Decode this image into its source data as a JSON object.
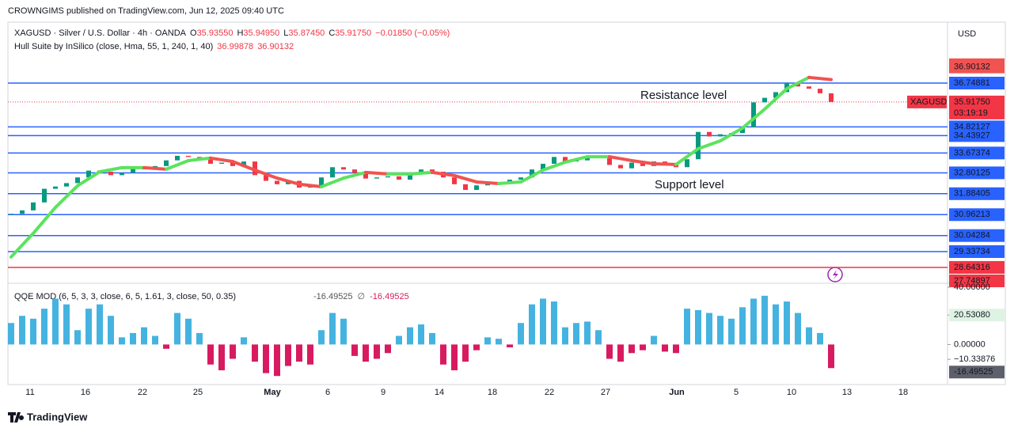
{
  "header": {
    "published": "CROWNGIMS published on TradingView.com, Jun 12, 2025 09:40 UTC"
  },
  "footer": {
    "brand": "TradingView"
  },
  "chart_data": [
    {
      "type": "candlestick",
      "title": "XAGUSD · Silver / U.S. Dollar · 4h · OANDA",
      "ohlc_legend": [
        {
          "key": "O",
          "value": "35.93550"
        },
        {
          "key": "H",
          "value": "35.94950"
        },
        {
          "key": "L",
          "value": "35.87450"
        },
        {
          "key": "C",
          "value": "35.91750"
        }
      ],
      "change": "−0.01850 (−0.05%)",
      "currency": "USD",
      "up_color": "#089981",
      "down_color": "#f23645",
      "close": [
        31.0,
        31.15,
        31.5,
        32.1,
        32.2,
        32.35,
        32.6,
        32.9,
        32.85,
        32.7,
        32.8,
        33.0,
        32.95,
        33.1,
        33.35,
        33.55,
        33.5,
        33.45,
        33.2,
        33.25,
        33.1,
        33.3,
        32.7,
        32.45,
        32.3,
        32.45,
        32.15,
        32.2,
        32.6,
        33.05,
        32.95,
        32.8,
        32.55,
        32.6,
        32.65,
        32.5,
        32.75,
        32.95,
        32.85,
        32.6,
        32.3,
        32.05,
        32.25,
        32.4,
        32.35,
        32.5,
        32.6,
        32.95,
        33.2,
        33.5,
        33.3,
        33.35,
        33.45,
        33.5,
        33.15,
        33.0,
        33.25,
        33.1,
        33.3,
        33.15,
        33.05,
        33.4,
        34.6,
        34.4,
        34.5,
        34.55,
        34.8,
        35.9,
        36.1,
        36.35,
        36.75,
        36.6,
        36.5,
        36.3,
        35.9175
      ],
      "hull": {
        "name": "Hull Suite by InSilico (close, Hma, 55, 1, 240, 1, 40)",
        "up_color": "#5be35d",
        "down_color": "#f05350",
        "values": [
          29.1,
          30.14,
          31.28,
          32.23,
          32.85,
          33.03,
          33.03,
          32.96,
          33.34,
          33.45,
          33.3,
          32.92,
          32.57,
          32.3,
          32.19,
          32.57,
          32.82,
          32.75,
          32.75,
          32.82,
          32.68,
          32.4,
          32.33,
          32.4,
          32.92,
          33.27,
          33.51,
          33.51,
          33.34,
          33.2,
          33.17,
          33.86,
          34.21,
          34.77,
          35.6,
          36.5,
          36.99878,
          36.90132
        ]
      },
      "last_price": {
        "symbol": "XAGUSD",
        "label": "35.91750",
        "value": 35.9175,
        "countdown": "03:19:19",
        "color": "#f23645"
      },
      "levels": [
        {
          "value": 36.74881,
          "color": "#2962ff"
        },
        {
          "value": 34.82127,
          "color": "#2962ff"
        },
        {
          "value": 34.43927,
          "color": "#2962ff"
        },
        {
          "value": 33.67374,
          "color": "#2962ff"
        },
        {
          "value": 32.80125,
          "color": "#2962ff"
        },
        {
          "value": 31.88405,
          "color": "#2962ff"
        },
        {
          "value": 30.96213,
          "color": "#2962ff"
        },
        {
          "value": 30.04284,
          "color": "#2962ff"
        },
        {
          "value": 29.33734,
          "color": "#2962ff"
        },
        {
          "value": 28.64316,
          "color": "#f23645"
        }
      ],
      "axis_markers": [
        {
          "value": 27.74897,
          "color": "#f23645"
        }
      ],
      "annotations": [
        {
          "text": "Resistance level",
          "color": "#f23645"
        },
        {
          "text": "Support level",
          "color": "#2962ff"
        }
      ],
      "ylim": [
        27.98,
        39.428
      ],
      "xtick_labels": [
        "11",
        "16",
        "22",
        "25",
        "May",
        "6",
        "9",
        "14",
        "18",
        "22",
        "27",
        "Jun",
        "5",
        "10",
        "13",
        "18"
      ]
    },
    {
      "type": "bar",
      "title": "QQE MOD (6, 5, 3, 3, close, 6, 5, 1.61, 3, close, 50, 0.35)",
      "na_symbol": "∅",
      "pos_color": "#45b3e0",
      "neg_color": "#d81b60",
      "values": [
        15,
        20,
        18,
        25,
        32,
        28,
        10,
        25,
        28,
        20,
        5,
        8,
        12,
        6,
        -3,
        22,
        18,
        8,
        -14,
        -18,
        -10,
        5,
        -12,
        -20,
        -22,
        -15,
        -12,
        -14,
        10,
        22,
        18,
        -8,
        -12,
        -10,
        -6,
        6,
        12,
        14,
        8,
        -14,
        -18,
        -12,
        -4,
        5,
        4,
        -2,
        15,
        28,
        32,
        30,
        12,
        15,
        16,
        10,
        -10,
        -12,
        -6,
        -4,
        6,
        -5,
        -6,
        25,
        24,
        22,
        20,
        18,
        26,
        32,
        34,
        28,
        30,
        22,
        12,
        8,
        -16.49525
      ],
      "ylim": [
        -27.4,
        42.74
      ],
      "yticks": [
        {
          "value": 40,
          "label": "40.00000"
        },
        {
          "value": 20.5308,
          "label": "20.53080"
        },
        {
          "value": 0,
          "label": "0.00000"
        },
        {
          "value": -10.33876,
          "label": "−10.33876"
        }
      ]
    }
  ]
}
